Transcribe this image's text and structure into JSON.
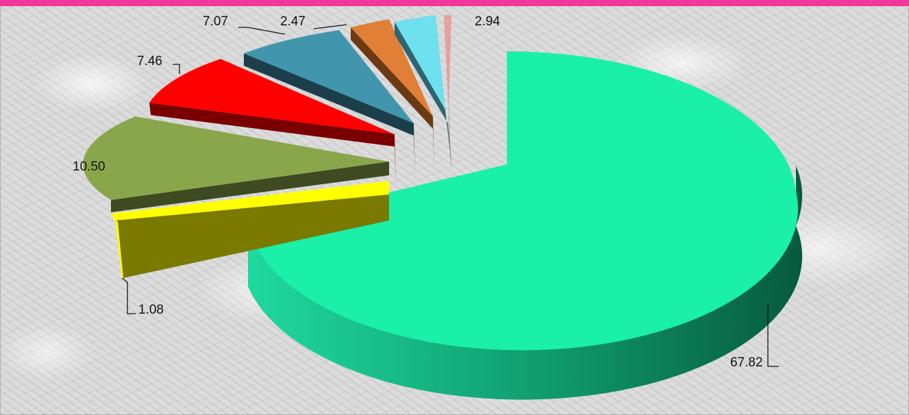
{
  "chart_data": {
    "type": "pie",
    "variant": "3d-exploded",
    "slices": [
      {
        "value": 67.82,
        "label": "67.82",
        "color": "#1af0a8",
        "side": "#0a8a5e"
      },
      {
        "value": 1.08,
        "label": "1.08",
        "color": "#ffff00",
        "side": "#7a7a00"
      },
      {
        "value": 10.5,
        "label": "10.50",
        "color": "#8aa64a",
        "side": "#3e4a20"
      },
      {
        "value": 7.46,
        "label": "7.46",
        "color": "#ff0000",
        "side": "#7a0000"
      },
      {
        "value": 7.07,
        "label": "7.07",
        "color": "#4196ae",
        "side": "#1b3f4a"
      },
      {
        "value": 2.47,
        "label": "2.47",
        "color": "#e07f35",
        "side": "#6b3a12"
      },
      {
        "value": null,
        "label": "",
        "color": "#6ee0ee",
        "side": "#2d6670"
      },
      {
        "value": 2.94,
        "label": "2.94",
        "color": "#e5a0a0",
        "side": "#8a4f4f"
      }
    ],
    "accent": "#f0399b"
  }
}
